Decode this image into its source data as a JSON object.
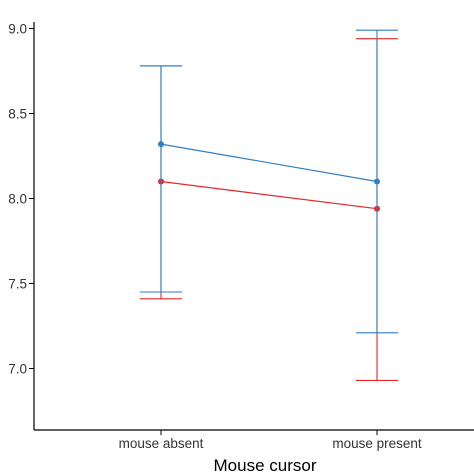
{
  "chart_data": {
    "type": "line",
    "title": "",
    "xlabel": "Mouse cursor",
    "ylabel": "",
    "categories": [
      "mouse absent",
      "mouse present"
    ],
    "y_ticks": [
      "7.0",
      "7.5",
      "8.0",
      "8.5",
      "9.0"
    ],
    "ylim": [
      6.82,
      9.03
    ],
    "grid": false,
    "legend": "none",
    "series": [
      {
        "color": "#e8262b",
        "values": [
          8.1,
          7.94
        ],
        "lower": [
          7.41,
          6.93
        ],
        "upper": [
          8.78,
          8.94
        ]
      },
      {
        "color": "#2f7fc1",
        "values": [
          8.32,
          8.1
        ],
        "lower": [
          7.45,
          7.21
        ],
        "upper": [
          8.78,
          8.99
        ]
      }
    ]
  }
}
